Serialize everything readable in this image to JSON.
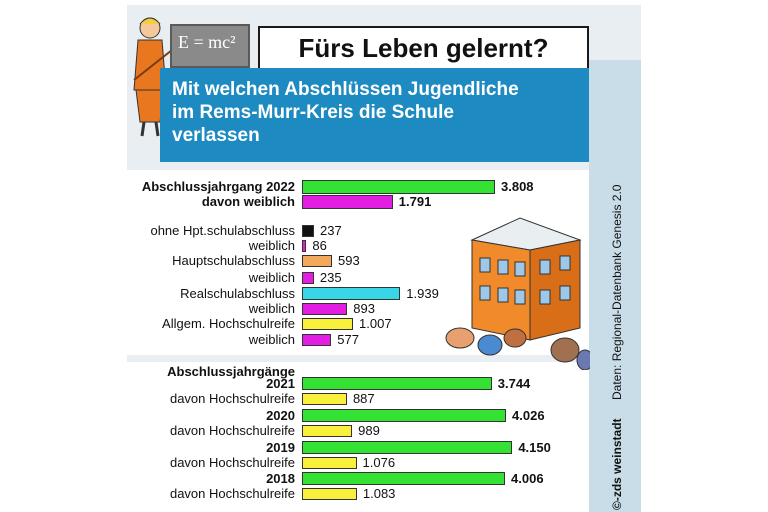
{
  "title": "Fürs Leben gelernt?",
  "subtitle_lines": [
    "Mit welchen Abschlüssen Jugendliche",
    "im Rems-Murr-Kreis die Schule",
    "verlassen"
  ],
  "formula": "E = mc²",
  "source": "Daten: Regional-Datenbank Genesis 2.0",
  "credit": "©-zds weinstadt",
  "colors": {
    "green": "#33e233",
    "magenta": "#e21ee2",
    "black": "#111111",
    "orange": "#f4a85c",
    "cyan": "#38d6e6",
    "yellow": "#f8f03a",
    "blue": "#1e8ac2"
  },
  "chart_data": [
    {
      "type": "bar",
      "title": "Abschlussjahrgang 2022",
      "orientation": "horizontal",
      "categories": [
        "Abschlussjahrgang 2022",
        "davon weiblich",
        "ohne Hpt.schulabschluss",
        "weiblich",
        "Hauptschulabschluss",
        "weiblich",
        "Realschulabschluss",
        "weiblich",
        "Allgem. Hochschulreife",
        "weiblich"
      ],
      "values": [
        3808,
        1791,
        237,
        86,
        593,
        235,
        1939,
        893,
        1007,
        577
      ],
      "value_labels": [
        "3.808",
        "1.791",
        "237",
        "86",
        "593",
        "235",
        "1.939",
        "893",
        "1.007",
        "577"
      ],
      "bold": [
        true,
        true,
        false,
        false,
        false,
        false,
        false,
        false,
        false,
        false
      ],
      "colors": [
        "green",
        "magenta",
        "black",
        "magenta",
        "orange",
        "magenta",
        "cyan",
        "magenta",
        "yellow",
        "magenta"
      ]
    },
    {
      "type": "bar",
      "title": "Abschlussjahrgänge",
      "orientation": "horizontal",
      "categories": [
        "2021",
        "davon Hochschulreife",
        "2020",
        "davon Hochschulreife",
        "2019",
        "davon Hochschulreife",
        "2018",
        "davon Hochschulreife"
      ],
      "values": [
        3744,
        887,
        4026,
        989,
        4150,
        1076,
        4006,
        1083
      ],
      "value_labels": [
        "3.744",
        "887",
        "4.026",
        "989",
        "4.150",
        "1.076",
        "4.006",
        "1.083"
      ],
      "bold": [
        true,
        false,
        true,
        false,
        true,
        false,
        true,
        false
      ],
      "colors": [
        "green",
        "yellow",
        "green",
        "yellow",
        "green",
        "yellow",
        "green",
        "yellow"
      ]
    }
  ]
}
